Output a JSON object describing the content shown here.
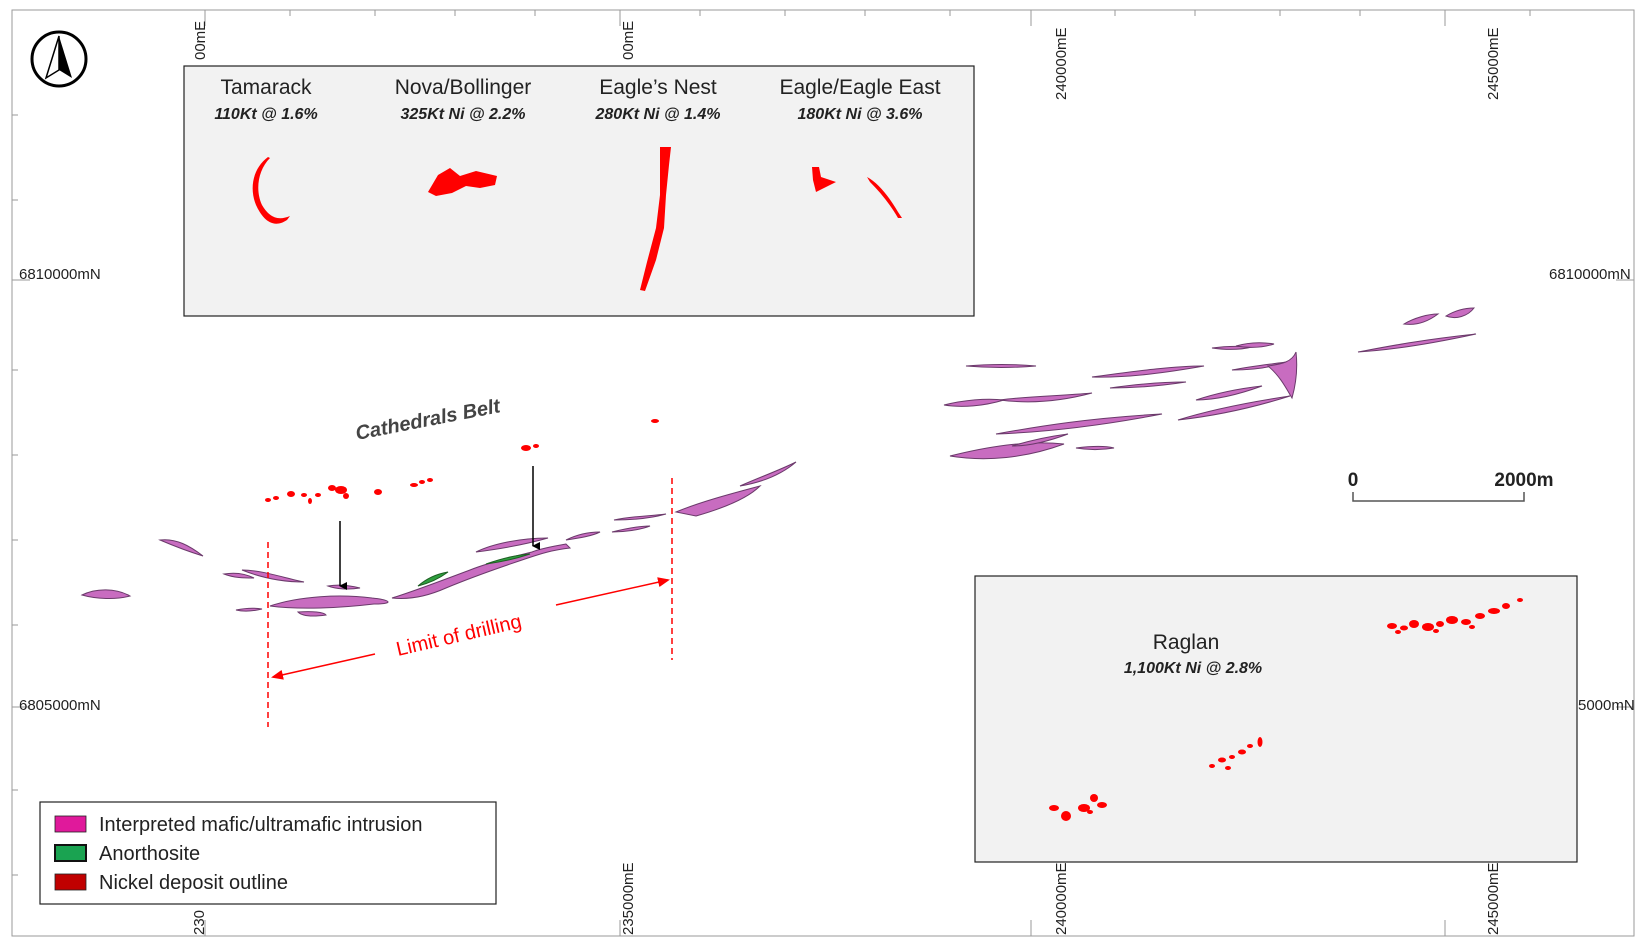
{
  "grid": {
    "eastings_top": [
      "00mE",
      "00mE",
      "240000mE",
      "245000mE"
    ],
    "eastings_bottom": [
      "230",
      "235000mE",
      "240000mE",
      "245000mE"
    ],
    "northings_left": [
      "6810000mN",
      "6805000mN"
    ],
    "northings_right": [
      "6810000mN",
      "5000mN"
    ]
  },
  "inset_top": {
    "deposits": [
      {
        "name": "Tamarack",
        "resource": "110Kt @ 1.6%"
      },
      {
        "name": "Nova/Bollinger",
        "resource": "325Kt Ni @ 2.2%"
      },
      {
        "name": "Eagle’s Nest",
        "resource": "280Kt Ni @ 1.4%"
      },
      {
        "name": "Eagle/Eagle East",
        "resource": "180Kt Ni @ 3.6%"
      }
    ]
  },
  "inset_raglan": {
    "name": "Raglan",
    "resource": "1,100Kt Ni @ 2.8%"
  },
  "annotations": {
    "belt_label": "Cathedrals Belt",
    "drilling_label": "Limit of drilling"
  },
  "scale_bar": {
    "start": "0",
    "end": "2000m"
  },
  "legend": {
    "items": [
      {
        "label": "Interpreted mafic/ultramafic intrusion",
        "color": "#e0199b"
      },
      {
        "label": "Anorthosite",
        "color": "#1aa351"
      },
      {
        "label": "Nickel deposit outline",
        "color": "#c00000"
      }
    ]
  },
  "colors": {
    "intrusion_fill": "#c86cc0",
    "intrusion_stroke": "#6b3a6b",
    "anorthosite": "#2e9e3e",
    "nickel": "#ff0000",
    "inset_bg": "#f2f2f2"
  },
  "icons": {
    "north_arrow": "north-arrow-icon"
  }
}
